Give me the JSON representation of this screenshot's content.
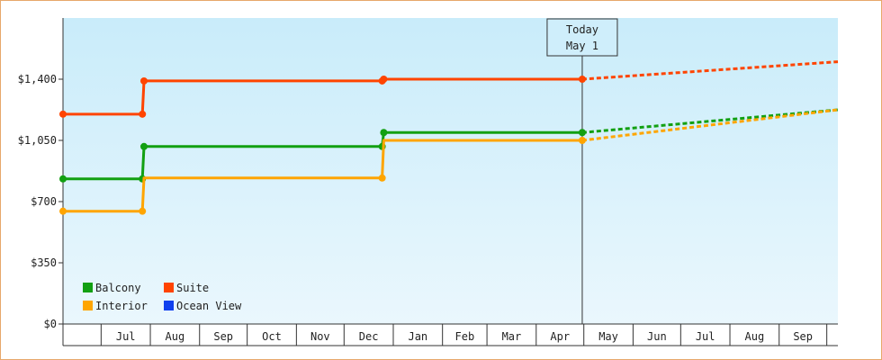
{
  "chart_data": {
    "type": "line",
    "title": "",
    "xlabel": "",
    "ylabel": "",
    "ylim": [
      0,
      1750
    ],
    "y_ticks": [
      0,
      350,
      700,
      1050,
      1400
    ],
    "y_tick_labels": [
      "$0",
      "$350",
      "$700",
      "$1,050",
      "$1,400"
    ],
    "months": [
      "Jul",
      "Aug",
      "Sep",
      "Oct",
      "Nov",
      "Dec",
      "Jan",
      "Feb",
      "Mar",
      "Apr",
      "May",
      "Jun",
      "Jul",
      "Aug",
      "Sep"
    ],
    "month_day_counts": [
      31,
      31,
      30,
      31,
      30,
      31,
      31,
      28,
      31,
      30,
      31,
      30,
      31,
      31,
      30
    ],
    "x_range_days": [
      -24,
      464
    ],
    "today": {
      "label": "Today",
      "date": "May 1",
      "day": 303
    },
    "grid": false,
    "legend_position": "bottom-left",
    "background": {
      "top": "#c9ecfa",
      "bottom": "#eaf7fd"
    },
    "series": [
      {
        "name": "Balcony",
        "color": "#12a012",
        "points": [
          [
            -24,
            830
          ],
          [
            26,
            830
          ],
          [
            27,
            1015
          ],
          [
            177,
            1015
          ],
          [
            178,
            1095
          ],
          [
            303,
            1095
          ]
        ],
        "markers": [
          [
            -24,
            830
          ],
          [
            26,
            830
          ],
          [
            27,
            1015
          ],
          [
            177,
            1015
          ],
          [
            178,
            1095
          ],
          [
            303,
            1095
          ]
        ],
        "forecast": [
          [
            303,
            1095
          ],
          [
            464,
            1225
          ]
        ]
      },
      {
        "name": "Suite",
        "color": "#ff4400",
        "points": [
          [
            -24,
            1200
          ],
          [
            26,
            1200
          ],
          [
            27,
            1390
          ],
          [
            177,
            1390
          ],
          [
            178,
            1400
          ],
          [
            303,
            1400
          ]
        ],
        "markers": [
          [
            -24,
            1200
          ],
          [
            26,
            1200
          ],
          [
            27,
            1390
          ],
          [
            177,
            1390
          ],
          [
            178,
            1400
          ],
          [
            303,
            1400
          ]
        ],
        "forecast": [
          [
            303,
            1400
          ],
          [
            464,
            1500
          ]
        ]
      },
      {
        "name": "Interior",
        "color": "#ffa500",
        "points": [
          [
            -24,
            645
          ],
          [
            26,
            645
          ],
          [
            27,
            835
          ],
          [
            177,
            835
          ],
          [
            178,
            1050
          ],
          [
            303,
            1050
          ]
        ],
        "markers": [
          [
            -24,
            645
          ],
          [
            26,
            645
          ],
          [
            177,
            835
          ],
          [
            303,
            1050
          ]
        ],
        "forecast": [
          [
            303,
            1050
          ],
          [
            464,
            1225
          ]
        ]
      },
      {
        "name": "Ocean View",
        "color": "#1040ee",
        "points": [],
        "markers": [],
        "forecast": []
      }
    ]
  }
}
